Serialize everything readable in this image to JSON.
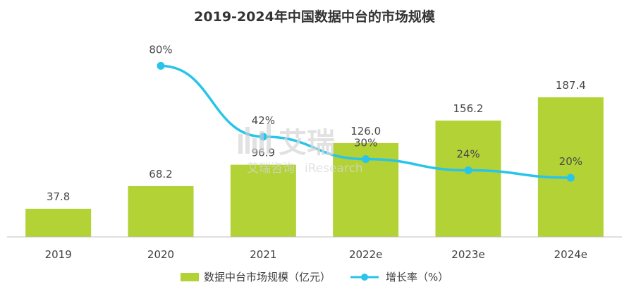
{
  "chart_data": {
    "type": "bar",
    "title": "2019-2024年中国数据中台的市场规模",
    "categories": [
      "2019",
      "2020",
      "2021",
      "2022e",
      "2023e",
      "2024e"
    ],
    "series": [
      {
        "name": "数据中台市场规模（亿元）",
        "kind": "bar",
        "values": [
          37.8,
          68.2,
          96.9,
          126.0,
          156.2,
          187.4
        ],
        "labels": [
          "37.8",
          "68.2",
          "96.9",
          "126.0",
          "156.2",
          "187.4"
        ],
        "color": "#b2d235"
      },
      {
        "name": "增长率（%）",
        "kind": "line",
        "values": [
          null,
          80,
          42,
          30,
          24,
          20
        ],
        "labels": [
          "",
          "80%",
          "42%",
          "30%",
          "24%",
          "20%"
        ],
        "color": "#29c4ea"
      }
    ],
    "ylim": [
      0,
      265
    ],
    "y2lim": [
      0,
      100
    ],
    "grid": false,
    "legend": "bottom"
  },
  "watermark": {
    "brand": "艾瑞",
    "line1": "艾瑞咨询",
    "line2": "iResearch"
  }
}
